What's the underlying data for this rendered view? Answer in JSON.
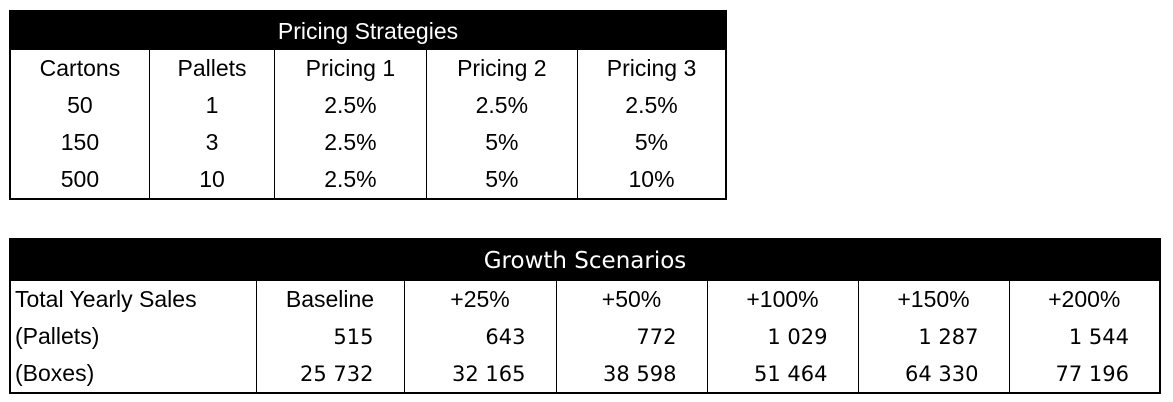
{
  "pricing": {
    "title": "Pricing Strategies",
    "headers": [
      "Cartons",
      "Pallets",
      "Pricing 1",
      "Pricing 2",
      "Pricing 3"
    ],
    "rows": [
      [
        "50",
        "1",
        "2.5%",
        "2.5%",
        "2.5%"
      ],
      [
        "150",
        "3",
        "2.5%",
        "5%",
        "5%"
      ],
      [
        "500",
        "10",
        "2.5%",
        "5%",
        "10%"
      ]
    ]
  },
  "growth": {
    "title": "Growth Scenarios",
    "headers": [
      "Total Yearly Sales",
      "Baseline",
      "+25%",
      "+50%",
      "+100%",
      "+150%",
      "+200%"
    ],
    "rows": [
      [
        "(Pallets)",
        "515",
        "643",
        "772",
        "1 029",
        "1 287",
        "1 544"
      ],
      [
        "(Boxes)",
        "25 732",
        "32 165",
        "38 598",
        "51 464",
        "64 330",
        "77 196"
      ]
    ]
  }
}
